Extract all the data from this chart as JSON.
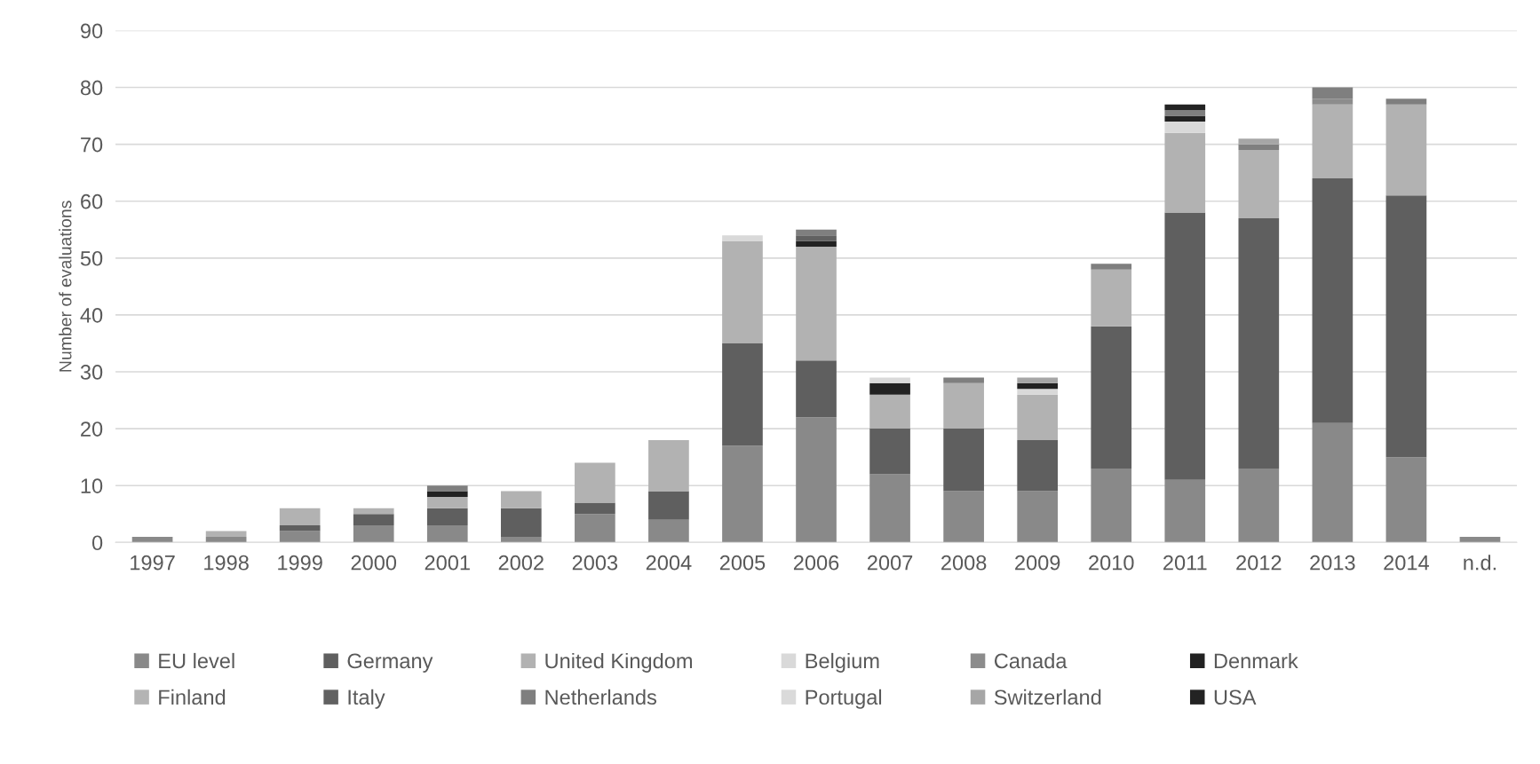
{
  "chart_data": {
    "type": "bar",
    "stacked": true,
    "ylabel": "Number of evaluations",
    "categories": [
      "1997",
      "1998",
      "1999",
      "2000",
      "2001",
      "2002",
      "2003",
      "2004",
      "2005",
      "2006",
      "2007",
      "2008",
      "2009",
      "2010",
      "2011",
      "2012",
      "2013",
      "2014",
      "n.d."
    ],
    "ylim": [
      0,
      90
    ],
    "yticks": [
      0,
      10,
      20,
      30,
      40,
      50,
      60,
      70,
      80,
      90
    ],
    "grid": "y",
    "legend": "bottom",
    "series": [
      {
        "name": "EU level",
        "color": "#898989",
        "values": [
          1,
          1,
          2,
          3,
          3,
          1,
          5,
          4,
          17,
          22,
          12,
          9,
          9,
          13,
          11,
          13,
          21,
          15,
          1
        ]
      },
      {
        "name": "Germany",
        "color": "#5f5f5f",
        "values": [
          0,
          0,
          1,
          2,
          3,
          5,
          2,
          5,
          18,
          10,
          8,
          11,
          9,
          25,
          47,
          44,
          43,
          46,
          0
        ]
      },
      {
        "name": "United Kingdom",
        "color": "#b2b2b2",
        "values": [
          0,
          1,
          3,
          1,
          2,
          3,
          7,
          9,
          18,
          20,
          6,
          8,
          8,
          10,
          14,
          12,
          13,
          16,
          0
        ]
      },
      {
        "name": "Belgium",
        "color": "#d9d9d9",
        "values": [
          0,
          0,
          0,
          0,
          0,
          0,
          0,
          0,
          1,
          0,
          0,
          0,
          1,
          0,
          2,
          0,
          0,
          0,
          0
        ]
      },
      {
        "name": "Canada",
        "color": "#8c8c8c",
        "values": [
          0,
          0,
          0,
          0,
          0,
          0,
          0,
          0,
          0,
          0,
          0,
          0,
          0,
          0,
          0,
          0,
          1,
          0,
          0
        ]
      },
      {
        "name": "Denmark",
        "color": "#222222",
        "values": [
          0,
          0,
          0,
          0,
          1,
          0,
          0,
          0,
          0,
          1,
          2,
          0,
          1,
          0,
          1,
          0,
          0,
          0,
          0
        ]
      },
      {
        "name": "Finland",
        "color": "#b4b4b4",
        "values": [
          0,
          0,
          0,
          0,
          0,
          0,
          0,
          0,
          0,
          0,
          0,
          0,
          0,
          0,
          0,
          0,
          0,
          0,
          0
        ]
      },
      {
        "name": "Italy",
        "color": "#616161",
        "values": [
          0,
          0,
          0,
          0,
          0,
          0,
          0,
          0,
          0,
          1,
          0,
          0,
          0,
          0,
          0,
          0,
          0,
          0,
          0
        ]
      },
      {
        "name": "Netherlands",
        "color": "#7f7f7f",
        "values": [
          0,
          0,
          0,
          0,
          1,
          0,
          0,
          0,
          0,
          1,
          0,
          1,
          0,
          1,
          1,
          1,
          2,
          1,
          0
        ]
      },
      {
        "name": "Portugal",
        "color": "#dadada",
        "values": [
          0,
          0,
          0,
          0,
          0,
          0,
          0,
          0,
          0,
          0,
          1,
          0,
          0,
          0,
          0,
          0,
          0,
          0,
          0
        ]
      },
      {
        "name": "Switzerland",
        "color": "#a6a6a6",
        "values": [
          0,
          0,
          0,
          0,
          0,
          0,
          0,
          0,
          0,
          0,
          0,
          0,
          1,
          0,
          0,
          1,
          0,
          0,
          0
        ]
      },
      {
        "name": "USA",
        "color": "#232323",
        "values": [
          0,
          0,
          0,
          0,
          0,
          0,
          0,
          0,
          0,
          0,
          0,
          0,
          0,
          0,
          1,
          0,
          0,
          0,
          0
        ]
      }
    ]
  }
}
